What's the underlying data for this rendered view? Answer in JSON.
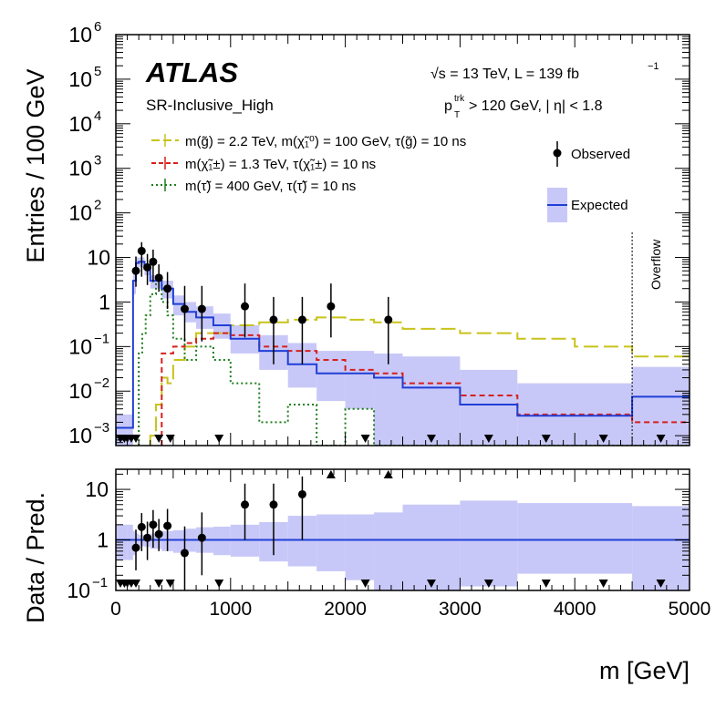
{
  "chart_data": {
    "type": "histogram",
    "experiment_label": "ATLAS",
    "region_label": "SR-Inclusive_High",
    "energy_label": "√s = 13 TeV,  L = 139 fb",
    "energy_label_exponent": "−1",
    "cut_label_p": "p",
    "cut_label_sup": "trk",
    "cut_label_sub": "T",
    "cut_label_rest": " > 120 GeV, | η| < 1.8",
    "overflow_label": "Overflow",
    "overflow_x": 4500,
    "xlabel": "m [GeV]",
    "xlim": [
      0,
      5000
    ],
    "xticks": [
      0,
      1000,
      2000,
      3000,
      4000,
      5000
    ],
    "top_panel": {
      "ylabel": "Entries / 100 GeV",
      "ylim": [
        0.0006,
        1000000
      ],
      "yscale": "log",
      "ytick_labels": [
        {
          "base": "10",
          "exp": "−3",
          "value": 0.001
        },
        {
          "base": "10",
          "exp": "−2",
          "value": 0.01
        },
        {
          "base": "10",
          "exp": "−1",
          "value": 0.1
        },
        {
          "base": "1",
          "exp": "",
          "value": 1
        },
        {
          "base": "10",
          "exp": "",
          "value": 10
        },
        {
          "base": "10",
          "exp": "2",
          "value": 100
        },
        {
          "base": "10",
          "exp": "3",
          "value": 1000
        },
        {
          "base": "10",
          "exp": "4",
          "value": 10000
        },
        {
          "base": "10",
          "exp": "5",
          "value": 100000
        },
        {
          "base": "10",
          "exp": "6",
          "value": 1000000
        }
      ]
    },
    "ratio_panel": {
      "ylabel": "Data / Pred.",
      "ylim": [
        0.1,
        25
      ],
      "yscale": "log",
      "ytick_labels": [
        {
          "label": "10",
          "exp": "−1",
          "value": 0.1
        },
        {
          "label": "1",
          "exp": "",
          "value": 1
        },
        {
          "label": "10",
          "exp": "",
          "value": 10
        }
      ]
    },
    "legend": {
      "signal_gluino": "m(g̃) = 2.2 TeV, m(χ̃₁⁰) = 100 GeV, τ(g̃) = 10 ns",
      "signal_chargino": "m(χ̃₁±) = 1.3 TeV, τ(χ̃₁±) = 10 ns",
      "signal_stau": "m(τ̃) =  400 GeV, τ(τ̃) = 10 ns",
      "observed": "Observed",
      "expected": "Expected"
    },
    "colors": {
      "expected_line": "#1f3fd6",
      "expected_band": "#c8c8f8",
      "gluino": "#c8c21a",
      "chargino": "#d6201e",
      "stau": "#1d7d1d",
      "data": "#000000"
    },
    "expected": {
      "edges": [
        0,
        100,
        150,
        175,
        200,
        250,
        300,
        400,
        500,
        600,
        700,
        850,
        1000,
        1250,
        1500,
        1750,
        2000,
        2250,
        2500,
        3000,
        3500,
        4500,
        5000
      ],
      "values": [
        0.0015,
        0.0015,
        3,
        7.5,
        8,
        5.5,
        3,
        2,
        0.9,
        0.6,
        0.45,
        0.3,
        0.15,
        0.08,
        0.04,
        0.025,
        0.025,
        0.02,
        0.012,
        0.005,
        0.0028,
        0.0075
      ],
      "band_low": [
        0.0006,
        0.0006,
        1.5,
        5,
        6,
        4,
        2,
        1.2,
        0.5,
        0.35,
        0.25,
        0.15,
        0.07,
        0.03,
        0.012,
        0.006,
        0.004,
        0.0006,
        0.0006,
        0.0006,
        0.0006,
        0.0006
      ],
      "band_high": [
        0.003,
        0.003,
        4.5,
        10,
        10,
        7,
        4,
        3,
        1.4,
        1,
        0.8,
        0.55,
        0.3,
        0.18,
        0.12,
        0.08,
        0.08,
        0.07,
        0.06,
        0.03,
        0.015,
        0.035
      ]
    },
    "signal_gluino": {
      "edges": [
        300,
        350,
        400,
        450,
        500,
        600,
        700,
        850,
        1000,
        1250,
        1500,
        1750,
        2000,
        2250,
        2500,
        3000,
        3500,
        4000,
        4500,
        5000
      ],
      "values": [
        0.001,
        0.005,
        0.02,
        0.015,
        0.05,
        0.1,
        0.2,
        0.2,
        0.3,
        0.35,
        0.4,
        0.45,
        0.4,
        0.35,
        0.25,
        0.2,
        0.15,
        0.1,
        0.06
      ]
    },
    "signal_chargino": {
      "edges": [
        400,
        500,
        600,
        700,
        850,
        1000,
        1250,
        1500,
        1750,
        2000,
        2250,
        2500,
        3000,
        3500,
        4000,
        4500,
        5000
      ],
      "values": [
        0.07,
        0.1,
        0.12,
        0.15,
        0.2,
        0.18,
        0.1,
        0.08,
        0.05,
        0.03,
        0.025,
        0.015,
        0.008,
        0.003,
        0.003,
        0.002
      ]
    },
    "signal_stau": {
      "edges": [
        200,
        230,
        260,
        300,
        350,
        400,
        450,
        500,
        600,
        700,
        850,
        1000,
        1250,
        1500,
        1750,
        2000,
        2250,
        2500,
        3000,
        5000
      ],
      "values": [
        0.07,
        0.2,
        0.5,
        1.5,
        3,
        1,
        0.5,
        0.15,
        0.05,
        0.1,
        0.05,
        0.015,
        0.002,
        0.005,
        0.0005,
        0.004,
        0.0005,
        0.0005,
        0.0005
      ]
    },
    "observed": {
      "x": [
        175,
        225,
        275,
        325,
        375,
        450,
        600,
        750,
        1125,
        1375,
        1625,
        1875,
        2375
      ],
      "y": [
        5,
        14,
        6,
        8,
        3.5,
        2,
        0.7,
        0.7,
        0.8,
        0.4,
        0.4,
        0.8,
        0.4
      ],
      "err_low": [
        2.8,
        10.3,
        3.6,
        5.2,
        1.8,
        1.3,
        0.57,
        0.57,
        0.64,
        0.36,
        0.36,
        0.64,
        0.36
      ],
      "err_high": [
        5.5,
        8,
        6,
        7,
        3.5,
        2.7,
        1.6,
        1.6,
        1.8,
        0.9,
        0.9,
        1.8,
        0.9
      ]
    },
    "zero_markers_top": [
      40,
      75,
      100,
      135,
      175,
      375,
      475,
      900,
      2175,
      2750,
      3250,
      3750,
      4250,
      4750
    ],
    "ratio": {
      "x": [
        175,
        225,
        275,
        325,
        375,
        450,
        600,
        750,
        1125,
        1375,
        1625
      ],
      "y": [
        0.7,
        1.8,
        1.1,
        2,
        1.3,
        1.9,
        0.55,
        1.1,
        5,
        5,
        8
      ],
      "err_low": [
        0.45,
        1.2,
        0.7,
        1.3,
        0.7,
        1.3,
        0.46,
        0.9,
        4,
        4.5,
        7
      ],
      "err_high": [
        0.9,
        1.6,
        1.2,
        1.9,
        1.3,
        2.2,
        1.3,
        2.4,
        8,
        8,
        10
      ]
    },
    "ratio_up_markers": [
      1875,
      2375
    ],
    "ratio_zero_markers": [
      40,
      75,
      100,
      135,
      175,
      375,
      475,
      900,
      2175,
      2750,
      3250,
      3750,
      4250,
      4750
    ]
  }
}
